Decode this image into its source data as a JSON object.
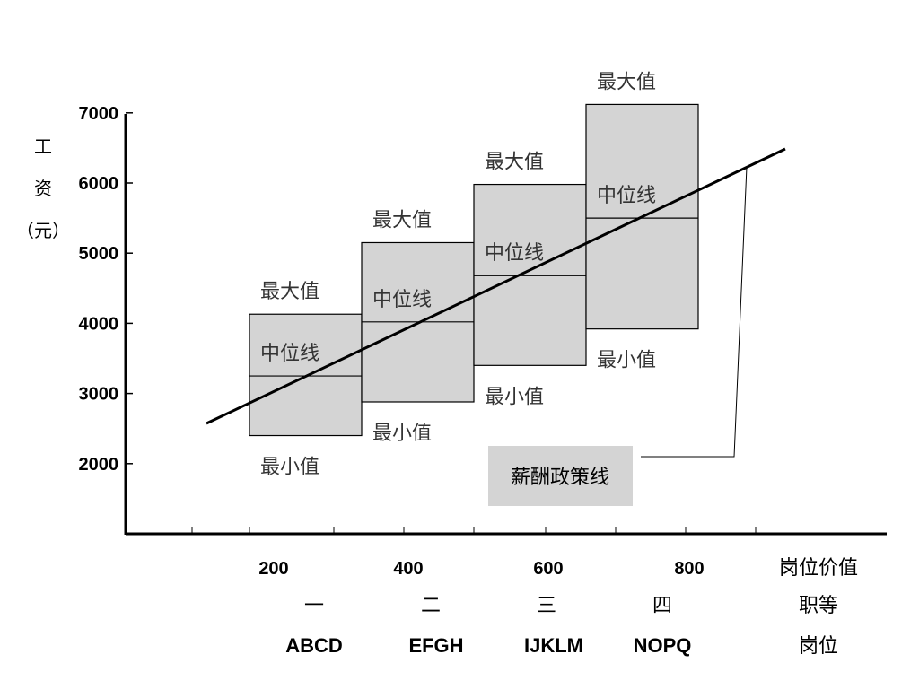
{
  "chart_data": {
    "type": "range-bands",
    "ylabel_chars": [
      "工",
      "资",
      "（元）"
    ],
    "y_ticks": [
      2000,
      3000,
      4000,
      5000,
      6000,
      7000
    ],
    "x_ticks": [
      200,
      400,
      600,
      800
    ],
    "x_axis_name": "岗位价值",
    "grade_row_name": "职等",
    "grades": [
      "一",
      "二",
      "三",
      "四"
    ],
    "position_row_name": "岗位",
    "positions": [
      "ABCD",
      "EFGH",
      "IJKLM",
      "NOPQ"
    ],
    "bands": [
      {
        "grade": "一",
        "x_from": 200,
        "x_to": 360,
        "min": 2400,
        "mid": 3250,
        "max": 4130
      },
      {
        "grade": "二",
        "x_from": 360,
        "x_to": 520,
        "min": 2880,
        "mid": 4020,
        "max": 5150
      },
      {
        "grade": "三",
        "x_from": 520,
        "x_to": 680,
        "min": 3400,
        "mid": 4680,
        "max": 5980
      },
      {
        "grade": "四",
        "x_from": 680,
        "x_to": 840,
        "min": 3920,
        "mid": 5500,
        "max": 7120
      }
    ],
    "band_labels": {
      "max": "最大值",
      "mid": "中位线",
      "min": "最小值"
    },
    "policy_line": {
      "label": "薪酬政策线",
      "from": [
        110,
        2580
      ],
      "to": [
        935,
        6480
      ]
    },
    "band_color": "#d4d4d4"
  }
}
